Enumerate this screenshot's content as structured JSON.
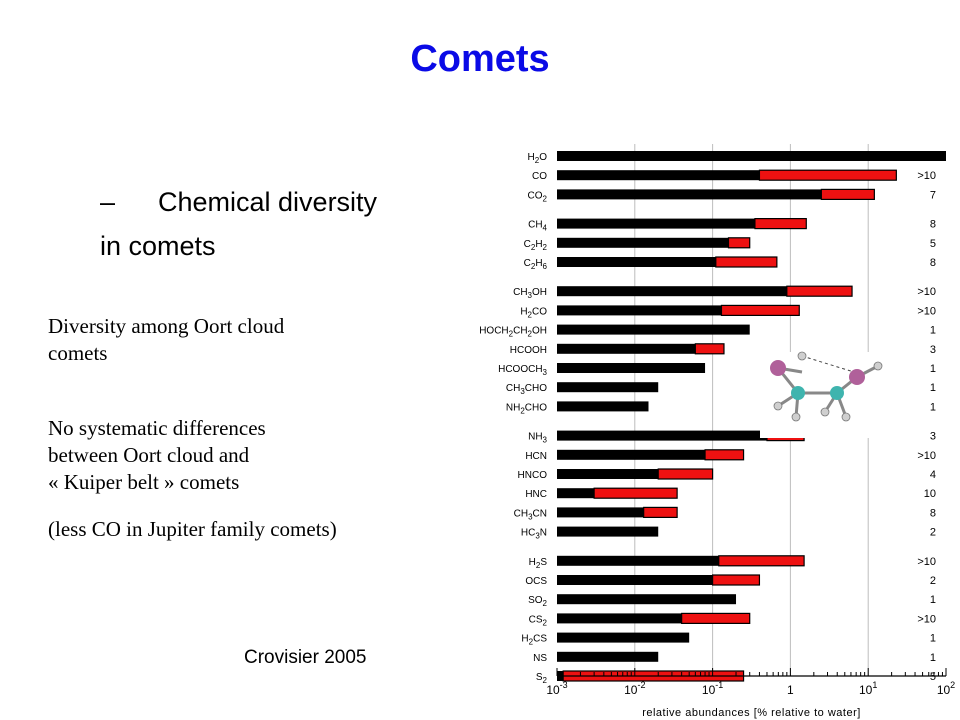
{
  "slide": {
    "title": "Comets",
    "bullet_dash": "–",
    "bullet_line1": "Chemical diversity",
    "bullet_line2": "in comets",
    "note1_line1": "Diversity among Oort cloud",
    "note1_line2": "comets",
    "note2_line1": "No systematic differences",
    "note2_line2": "between Oort cloud and",
    "note2_line3": "« Kuiper belt » comets",
    "note3": "(less CO in Jupiter family comets)",
    "credit": "Crovisier 2005"
  },
  "chart_data": {
    "type": "bar",
    "orientation": "horizontal",
    "xscale": "log",
    "xlim": [
      0.001,
      100
    ],
    "xlabel": "relative abundances [% relative to water]",
    "xticks": [
      {
        "value": 0.001,
        "base": "10",
        "exp": "-3"
      },
      {
        "value": 0.01,
        "base": "10",
        "exp": "-2"
      },
      {
        "value": 0.1,
        "base": "10",
        "exp": "-1"
      },
      {
        "value": 1,
        "base": "1",
        "exp": ""
      },
      {
        "value": 10,
        "base": "10",
        "exp": "1"
      },
      {
        "value": 100,
        "base": "10",
        "exp": "2"
      }
    ],
    "colors": {
      "min_bar": "#000000",
      "range_bar": "#ee1111",
      "outline": "#000000"
    },
    "groups": [
      [
        {
          "main": "H",
          "sub": "2",
          "tail": "O",
          "min": 100,
          "max": 100,
          "ratio": ""
        },
        {
          "main": "CO",
          "sub": "",
          "tail": "",
          "min": 0.4,
          "max": 23,
          "ratio": ">10"
        },
        {
          "main": "CO",
          "sub": "2",
          "tail": "",
          "min": 2.5,
          "max": 12,
          "ratio": "7"
        }
      ],
      [
        {
          "main": "CH",
          "sub": "4",
          "tail": "",
          "min": 0.35,
          "max": 1.6,
          "ratio": "8"
        },
        {
          "main": "C",
          "sub": "2",
          "tail": "H",
          "sub2": "2",
          "min": 0.16,
          "max": 0.3,
          "ratio": "5"
        },
        {
          "main": "C",
          "sub": "2",
          "tail": "H",
          "sub2": "6",
          "min": 0.11,
          "max": 0.67,
          "ratio": "8"
        }
      ],
      [
        {
          "main": "CH",
          "sub": "3",
          "tail": "OH",
          "min": 0.9,
          "max": 6.2,
          "ratio": ">10"
        },
        {
          "main": "H",
          "sub": "2",
          "tail": "CO",
          "min": 0.13,
          "max": 1.3,
          "ratio": ">10"
        },
        {
          "main": "HOCH",
          "sub": "2",
          "tail": "CH",
          "sub2": "2",
          "tail2": "OH",
          "min": 0.3,
          "max": 0.3,
          "ratio": "1"
        },
        {
          "main": "HCOOH",
          "sub": "",
          "tail": "",
          "min": 0.06,
          "max": 0.14,
          "ratio": "3"
        },
        {
          "main": "HCOOCH",
          "sub": "3",
          "tail": "",
          "min": 0.08,
          "max": 0.08,
          "ratio": "1"
        },
        {
          "main": "CH",
          "sub": "3",
          "tail": "CHO",
          "min": 0.02,
          "max": 0.02,
          "ratio": "1"
        },
        {
          "main": "NH",
          "sub": "2",
          "tail": "CHO",
          "min": 0.015,
          "max": 0.015,
          "ratio": "1"
        }
      ],
      [
        {
          "main": "NH",
          "sub": "3",
          "tail": "",
          "min": 0.5,
          "max": 1.5,
          "ratio": "3"
        },
        {
          "main": "HCN",
          "sub": "",
          "tail": "",
          "min": 0.08,
          "max": 0.25,
          "ratio": ">10"
        },
        {
          "main": "HNCO",
          "sub": "",
          "tail": "",
          "min": 0.02,
          "max": 0.1,
          "ratio": "4"
        },
        {
          "main": "HNC",
          "sub": "",
          "tail": "",
          "min": 0.003,
          "max": 0.035,
          "ratio": "10"
        },
        {
          "main": "CH",
          "sub": "3",
          "tail": "CN",
          "min": 0.013,
          "max": 0.035,
          "ratio": "8"
        },
        {
          "main": "HC",
          "sub": "3",
          "tail": "N",
          "min": 0.02,
          "max": 0.02,
          "ratio": "2"
        }
      ],
      [
        {
          "main": "H",
          "sub": "2",
          "tail": "S",
          "min": 0.12,
          "max": 1.5,
          "ratio": ">10"
        },
        {
          "main": "OCS",
          "sub": "",
          "tail": "",
          "min": 0.1,
          "max": 0.4,
          "ratio": "2"
        },
        {
          "main": "SO",
          "sub": "2",
          "tail": "",
          "min": 0.2,
          "max": 0.2,
          "ratio": "1"
        },
        {
          "main": "CS",
          "sub": "2",
          "tail": "",
          "min": 0.04,
          "max": 0.3,
          "ratio": ">10"
        },
        {
          "main": "H",
          "sub": "2",
          "tail": "CS",
          "min": 0.05,
          "max": 0.05,
          "ratio": "1"
        },
        {
          "main": "NS",
          "sub": "",
          "tail": "",
          "min": 0.02,
          "max": 0.02,
          "ratio": "1"
        },
        {
          "main": "S",
          "sub": "2",
          "tail": "",
          "min": 0.0012,
          "max": 0.25,
          "ratio": "5"
        }
      ]
    ]
  }
}
